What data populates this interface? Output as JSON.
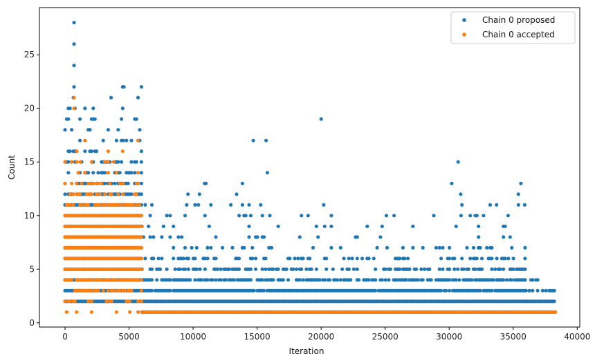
{
  "chart_data": {
    "type": "scatter",
    "title": "",
    "xlabel": "Iteration",
    "ylabel": "Count",
    "xlim": [
      -2000,
      40200
    ],
    "ylim": [
      -0.4,
      29.4
    ],
    "xticks": [
      0,
      5000,
      10000,
      15000,
      20000,
      25000,
      30000,
      35000,
      40000
    ],
    "yticks": [
      0,
      5,
      10,
      15,
      20,
      25
    ],
    "grid": false,
    "legend": "top-right",
    "series": [
      {
        "name": "Chain 0 proposed",
        "color": "#1f77b4",
        "segments": [
          {
            "x_start": 0,
            "x_end": 6000,
            "levels": [
              [
                2,
                1
              ],
              [
                3,
                1
              ],
              [
                4,
                1
              ],
              [
                5,
                1
              ],
              [
                6,
                1
              ],
              [
                7,
                1
              ],
              [
                8,
                1
              ],
              [
                9,
                1
              ],
              [
                10,
                1
              ],
              [
                11,
                0.95
              ],
              [
                12,
                0.85
              ],
              [
                13,
                0.7
              ],
              [
                14,
                0.55
              ],
              [
                15,
                0.4
              ],
              [
                16,
                0.3
              ],
              [
                17,
                0.2
              ],
              [
                18,
                0.15
              ],
              [
                19,
                0.1
              ],
              [
                20,
                0.06
              ],
              [
                21,
                0.04
              ],
              [
                22,
                0.03
              ]
            ]
          },
          {
            "x_start": 6000,
            "x_end": 11000,
            "levels": [
              [
                1,
                1
              ],
              [
                2,
                1
              ],
              [
                3,
                0.95
              ],
              [
                4,
                0.8
              ],
              [
                5,
                0.5
              ],
              [
                6,
                0.35
              ],
              [
                7,
                0.2
              ],
              [
                8,
                0.12
              ],
              [
                9,
                0.08
              ],
              [
                10,
                0.06
              ],
              [
                11,
                0.04
              ],
              [
                12,
                0.02
              ],
              [
                13,
                0.01
              ]
            ]
          },
          {
            "x_start": 11000,
            "x_end": 16000,
            "levels": [
              [
                1,
                1
              ],
              [
                2,
                1
              ],
              [
                3,
                0.95
              ],
              [
                4,
                0.75
              ],
              [
                5,
                0.55
              ],
              [
                6,
                0.35
              ],
              [
                7,
                0.22
              ],
              [
                8,
                0.14
              ],
              [
                9,
                0.1
              ],
              [
                10,
                0.08
              ],
              [
                11,
                0.06
              ],
              [
                12,
                0.03
              ],
              [
                13,
                0.02
              ]
            ]
          },
          {
            "x_start": 16000,
            "x_end": 21000,
            "levels": [
              [
                1,
                1
              ],
              [
                2,
                1
              ],
              [
                3,
                0.95
              ],
              [
                4,
                0.7
              ],
              [
                5,
                0.45
              ],
              [
                6,
                0.3
              ],
              [
                7,
                0.18
              ],
              [
                8,
                0.12
              ],
              [
                9,
                0.08
              ],
              [
                10,
                0.04
              ],
              [
                11,
                0.02
              ]
            ]
          },
          {
            "x_start": 21000,
            "x_end": 26000,
            "levels": [
              [
                1,
                1
              ],
              [
                2,
                1
              ],
              [
                3,
                0.95
              ],
              [
                4,
                0.65
              ],
              [
                5,
                0.4
              ],
              [
                6,
                0.2
              ],
              [
                7,
                0.1
              ],
              [
                8,
                0.06
              ],
              [
                9,
                0.04
              ],
              [
                10,
                0.02
              ]
            ]
          },
          {
            "x_start": 26000,
            "x_end": 31000,
            "levels": [
              [
                1,
                1
              ],
              [
                2,
                1
              ],
              [
                3,
                0.95
              ],
              [
                4,
                0.7
              ],
              [
                5,
                0.45
              ],
              [
                6,
                0.25
              ],
              [
                7,
                0.15
              ],
              [
                8,
                0.08
              ],
              [
                9,
                0.05
              ],
              [
                10,
                0.02
              ]
            ]
          },
          {
            "x_start": 31000,
            "x_end": 36000,
            "levels": [
              [
                1,
                1
              ],
              [
                2,
                1
              ],
              [
                3,
                0.95
              ],
              [
                4,
                0.75
              ],
              [
                5,
                0.5
              ],
              [
                6,
                0.3
              ],
              [
                7,
                0.18
              ],
              [
                8,
                0.12
              ],
              [
                9,
                0.08
              ],
              [
                10,
                0.05
              ],
              [
                11,
                0.04
              ],
              [
                12,
                0.02
              ]
            ]
          },
          {
            "x_start": 36000,
            "x_end": 38300,
            "levels": [
              [
                1,
                1
              ],
              [
                2,
                1
              ],
              [
                3,
                0.6
              ],
              [
                4,
                0.2
              ],
              [
                5,
                0.05
              ]
            ]
          }
        ],
        "points": [
          {
            "x": 700,
            "y": 28
          },
          {
            "x": 700,
            "y": 26
          },
          {
            "x": 700,
            "y": 24
          },
          {
            "x": 700,
            "y": 22
          },
          {
            "x": 4500,
            "y": 22
          },
          {
            "x": 4600,
            "y": 22
          },
          {
            "x": 3600,
            "y": 21
          },
          {
            "x": 5700,
            "y": 21
          },
          {
            "x": 4500,
            "y": 20
          },
          {
            "x": 10900,
            "y": 13
          },
          {
            "x": 10500,
            "y": 12
          },
          {
            "x": 9600,
            "y": 12
          },
          {
            "x": 14700,
            "y": 17
          },
          {
            "x": 15700,
            "y": 17
          },
          {
            "x": 15800,
            "y": 14
          },
          {
            "x": 13400,
            "y": 12
          },
          {
            "x": 20000,
            "y": 19
          },
          {
            "x": 20200,
            "y": 11
          },
          {
            "x": 25100,
            "y": 10
          },
          {
            "x": 25700,
            "y": 10
          },
          {
            "x": 30700,
            "y": 15
          },
          {
            "x": 30200,
            "y": 13
          },
          {
            "x": 30900,
            "y": 12
          },
          {
            "x": 28800,
            "y": 10
          },
          {
            "x": 35600,
            "y": 13
          },
          {
            "x": 35400,
            "y": 12
          },
          {
            "x": 33200,
            "y": 11
          },
          {
            "x": 33700,
            "y": 11
          },
          {
            "x": 35900,
            "y": 11
          },
          {
            "x": 34600,
            "y": 10
          }
        ]
      },
      {
        "name": "Chain 0 accepted",
        "color": "#ff7f0e",
        "segments": [
          {
            "x_start": 0,
            "x_end": 6000,
            "levels": [
              [
                1,
                0.05
              ],
              [
                2,
                0.3
              ],
              [
                3,
                0.5
              ],
              [
                4,
                0.8
              ],
              [
                5,
                1
              ],
              [
                6,
                1
              ],
              [
                7,
                1
              ],
              [
                8,
                1
              ],
              [
                9,
                1
              ],
              [
                10,
                1
              ],
              [
                11,
                0.6
              ],
              [
                12,
                0.45
              ],
              [
                13,
                0.3
              ],
              [
                14,
                0.15
              ],
              [
                15,
                0.06
              ],
              [
                16,
                0.03
              ],
              [
                17,
                0.02
              ]
            ]
          },
          {
            "x_start": 6000,
            "x_end": 38300,
            "levels": [
              [
                1,
                1
              ]
            ]
          }
        ],
        "points": [
          {
            "x": 700,
            "y": 21
          },
          {
            "x": 700,
            "y": 20
          },
          {
            "x": 5700,
            "y": 17
          },
          {
            "x": 4500,
            "y": 16
          },
          {
            "x": 3800,
            "y": 15
          },
          {
            "x": 1200,
            "y": 15
          }
        ]
      }
    ]
  }
}
